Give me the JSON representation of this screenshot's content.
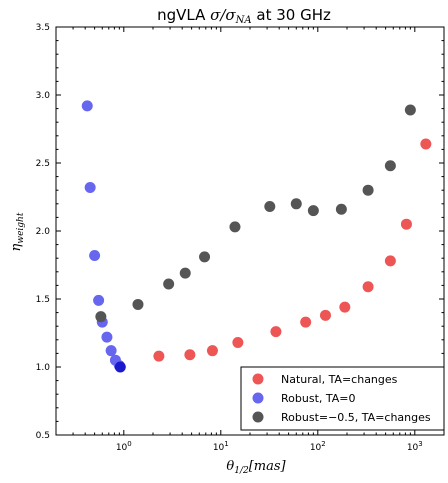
{
  "chart_data": {
    "type": "scatter",
    "title": "ngVLA σ/σ_NA at 30 GHz",
    "title_parts": {
      "prefix": "ngVLA ",
      "math": "σ/σ",
      "math_sub": "NA",
      "suffix": " at 30 GHz"
    },
    "xlabel": "θ_1/2[mas]",
    "xlabel_parts": {
      "base": "θ",
      "sub": "1/2",
      "rest": "[mas]"
    },
    "ylabel": "η_weight",
    "ylabel_parts": {
      "base": "η",
      "sub": "weight"
    },
    "xscale": "log",
    "xlim": [
      0.2,
      2000
    ],
    "ylim": [
      0.5,
      3.5
    ],
    "x_ticks": [
      {
        "value": 1,
        "base": "10",
        "exp": "0"
      },
      {
        "value": 10,
        "base": "10",
        "exp": "1"
      },
      {
        "value": 100,
        "base": "10",
        "exp": "2"
      },
      {
        "value": 1000,
        "base": "10",
        "exp": "3"
      }
    ],
    "y_ticks": [
      "0.5",
      "1.0",
      "1.5",
      "2.0",
      "2.5",
      "3.0",
      "3.5"
    ],
    "grid": false,
    "legend_position": "bottom-right",
    "series": [
      {
        "name": "Natural, TA=changes",
        "color": "#ee5555",
        "x": [
          2.3,
          4.8,
          8.2,
          15,
          37,
          75,
          120,
          190,
          330,
          560,
          820,
          1300
        ],
        "y": [
          1.08,
          1.09,
          1.12,
          1.18,
          1.26,
          1.33,
          1.38,
          1.44,
          1.59,
          1.78,
          2.05,
          2.64
        ]
      },
      {
        "name": "Robust, TA=0",
        "color": "#6666ee",
        "x": [
          0.42,
          0.45,
          0.5,
          0.55,
          0.6,
          0.67,
          0.74,
          0.82,
          0.9
        ],
        "y": [
          2.92,
          2.32,
          1.82,
          1.49,
          1.33,
          1.22,
          1.12,
          1.05,
          1.01
        ]
      },
      {
        "name": "Robust=−0.5, TA=changes",
        "color": "#555555",
        "x": [
          0.58,
          1.4,
          2.9,
          4.3,
          6.8,
          14,
          32,
          60,
          90,
          175,
          330,
          560,
          900
        ],
        "y": [
          1.37,
          1.46,
          1.61,
          1.69,
          1.81,
          2.03,
          2.18,
          2.2,
          2.15,
          2.16,
          2.3,
          2.48,
          2.89
        ]
      },
      {
        "name": "",
        "color": "#1a1acc",
        "x": [
          0.92
        ],
        "y": [
          1.0
        ]
      }
    ]
  }
}
